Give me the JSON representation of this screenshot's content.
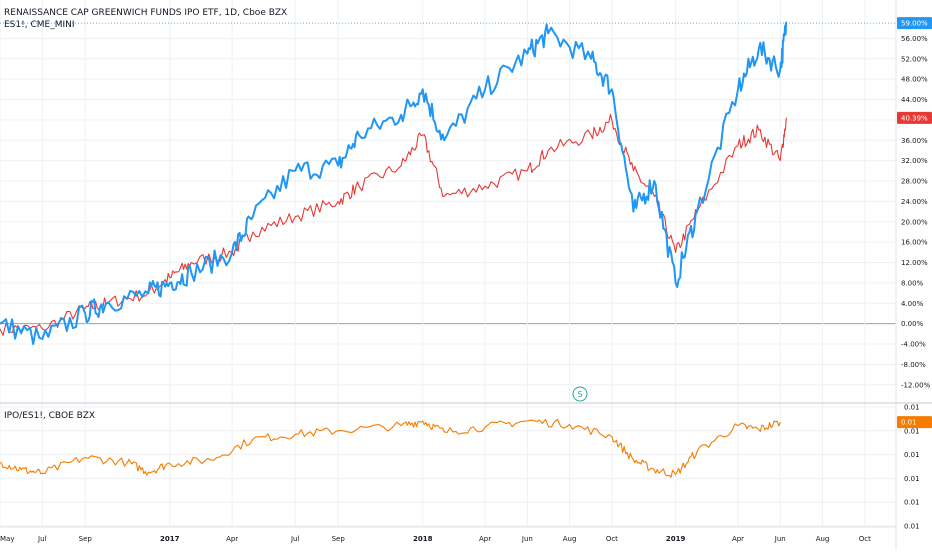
{
  "legend": {
    "main": "RENAISSANCE CAP GREENWICH FUNDS IPO ETF, 1D, Cboe BZX",
    "compare": "ES1!, CME_MINI",
    "lower": "IPO/ES1!, CBOE BZX"
  },
  "marker": {
    "symbol": "S"
  },
  "colors": {
    "ipo": "#2196f3",
    "es": "#e53935",
    "ratio": "#f57c00",
    "grid": "#eef1f5",
    "zero": "#7f95a8",
    "text": "#131722",
    "separator": "#d1d4dc"
  },
  "chart_data": [
    {
      "type": "line",
      "title": "",
      "yaxis": {
        "format": "percent",
        "ylim": [
          -14,
          60
        ],
        "ticks": [
          "56.00%",
          "52.00%",
          "48.00%",
          "44.00%",
          "40.00%",
          "36.00%",
          "32.00%",
          "28.00%",
          "24.00%",
          "20.00%",
          "16.00%",
          "12.00%",
          "8.00%",
          "4.00%",
          "0.00%",
          "-4.00%",
          "-8.00%",
          "-12.00%"
        ]
      },
      "last_values": {
        "IPO": "59.00%",
        "ES1!": "40.39%"
      },
      "xaxis_ticks": [
        {
          "label": "May",
          "bold": false
        },
        {
          "label": "Jul",
          "bold": false
        },
        {
          "label": "Sep",
          "bold": false
        },
        {
          "label": "2017",
          "bold": true
        },
        {
          "label": "Apr",
          "bold": false
        },
        {
          "label": "Jul",
          "bold": false
        },
        {
          "label": "Sep",
          "bold": false
        },
        {
          "label": "2018",
          "bold": true
        },
        {
          "label": "Apr",
          "bold": false
        },
        {
          "label": "Jun",
          "bold": false
        },
        {
          "label": "Aug",
          "bold": false
        },
        {
          "label": "Oct",
          "bold": false
        },
        {
          "label": "2019",
          "bold": true
        },
        {
          "label": "Apr",
          "bold": false
        },
        {
          "label": "Jun",
          "bold": false
        },
        {
          "label": "Aug",
          "bold": false
        },
        {
          "label": "Oct",
          "bold": false
        }
      ],
      "x": [
        "2016-05",
        "2016-07",
        "2016-09",
        "2016-10",
        "2016-12",
        "2017-01",
        "2017-02",
        "2017-04",
        "2017-05",
        "2017-07",
        "2017-09",
        "2017-10",
        "2017-12",
        "2018-01",
        "2018-02",
        "2018-04",
        "2018-06",
        "2018-07",
        "2018-09",
        "2018-10",
        "2018-11",
        "2018-12",
        "2019-01",
        "2019-02",
        "2019-04",
        "2019-05",
        "2019-06",
        "2019-06-10"
      ],
      "series": [
        {
          "name": "IPO",
          "values": [
            0,
            -3,
            2,
            4,
            6,
            8,
            10,
            14,
            21,
            30,
            31,
            37,
            41,
            46,
            36,
            46,
            53,
            57,
            52,
            46,
            22,
            28,
            8,
            22,
            46,
            54,
            50,
            59
          ]
        },
        {
          "name": "ES1!",
          "values": [
            -1,
            -1,
            3,
            4,
            6,
            9,
            12,
            14,
            18,
            21,
            24,
            27,
            31,
            37,
            25,
            27,
            30,
            34,
            37,
            40,
            30,
            25,
            14,
            22,
            35,
            38,
            32,
            40.39
          ]
        }
      ]
    },
    {
      "type": "line",
      "title": "",
      "yaxis": {
        "ticks": [
          "0.01",
          "0.01",
          "0.01",
          "0.01",
          "0.01",
          "0.01"
        ]
      },
      "last_value": "0.01",
      "x": [
        "2016-05",
        "2016-06",
        "2016-07",
        "2016-09",
        "2016-11",
        "2016-12",
        "2017-01",
        "2017-03",
        "2017-05",
        "2017-07",
        "2017-09",
        "2017-12",
        "2018-01",
        "2018-02",
        "2018-04",
        "2018-06",
        "2018-08",
        "2018-10",
        "2018-11",
        "2018-12",
        "2019-01",
        "2019-02",
        "2019-04",
        "2019-05",
        "2019-06"
      ],
      "series": [
        {
          "name": "IPO/ES1!",
          "values": [
            0.53,
            0.47,
            0.44,
            0.57,
            0.53,
            0.45,
            0.52,
            0.55,
            0.72,
            0.76,
            0.79,
            0.83,
            0.87,
            0.78,
            0.82,
            0.87,
            0.84,
            0.74,
            0.55,
            0.47,
            0.43,
            0.62,
            0.83,
            0.8,
            0.86
          ]
        }
      ]
    }
  ]
}
